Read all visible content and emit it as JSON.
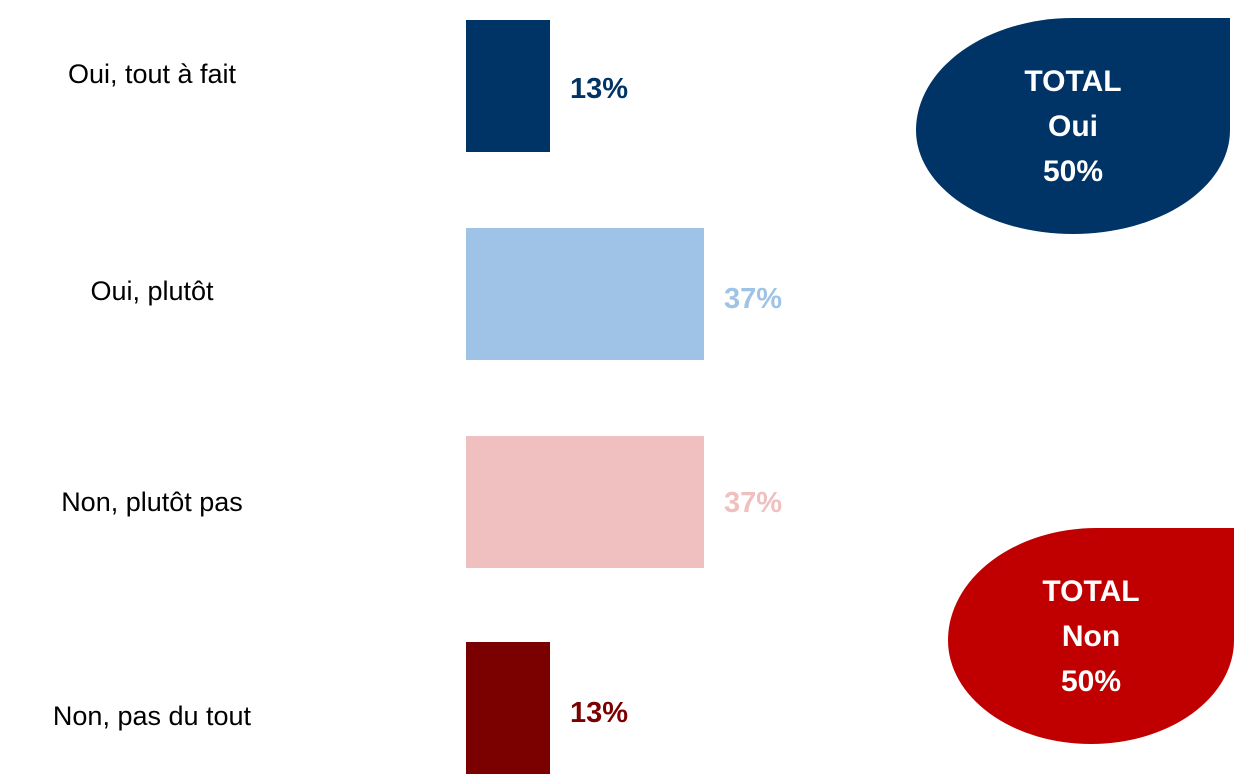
{
  "chart_data": {
    "type": "bar",
    "orientation": "horizontal",
    "categories": [
      "Oui, tout à fait",
      "Oui, plutôt",
      "Non, plutôt pas",
      "Non, pas du tout"
    ],
    "values": [
      13,
      37,
      37,
      13
    ],
    "value_labels": [
      "13%",
      "37%",
      "37%",
      "13%"
    ],
    "colors": [
      "#003366",
      "#9fc3e6",
      "#f0bfbf",
      "#7b0000"
    ],
    "xlim": [
      0,
      37
    ],
    "title": "",
    "xlabel": "",
    "ylabel": "",
    "grid": false
  },
  "totals": {
    "oui": {
      "line1": "TOTAL",
      "line2": "Oui",
      "line3": "50%",
      "color": "#003366"
    },
    "non": {
      "line1": "TOTAL",
      "line2": "Non",
      "line3": "50%",
      "color": "#c00000"
    }
  }
}
